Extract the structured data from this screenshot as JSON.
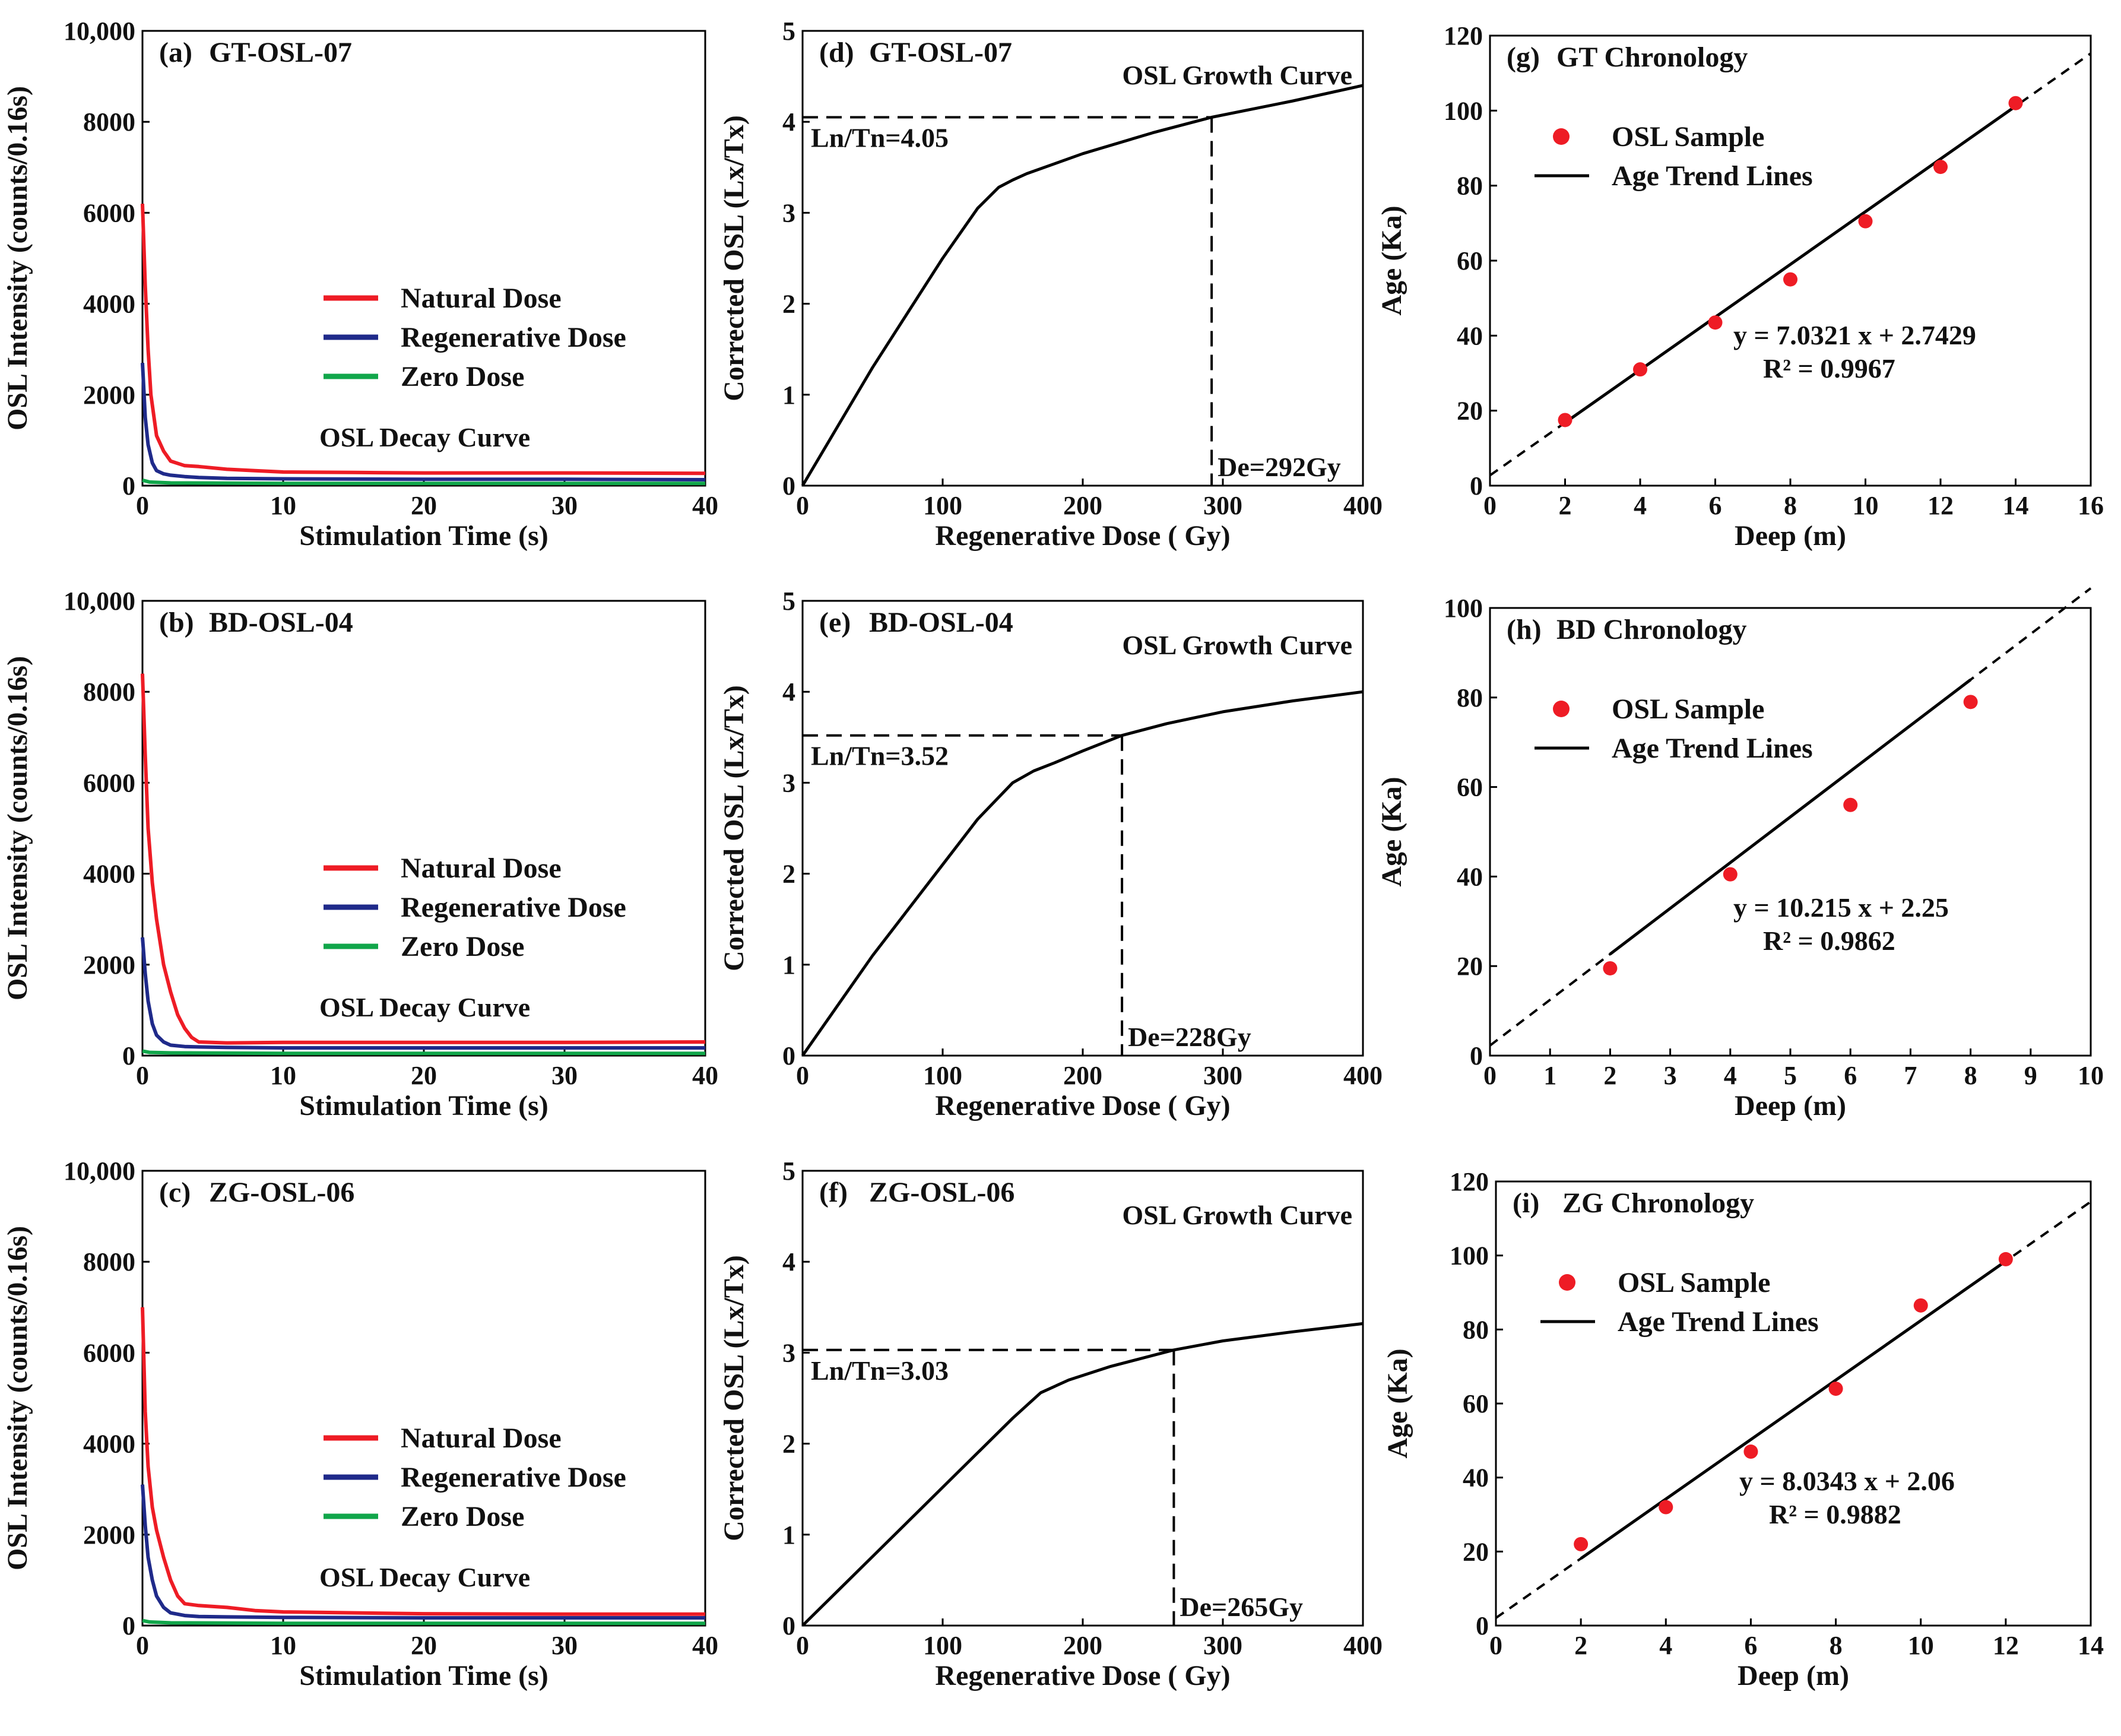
{
  "colors": {
    "natural": "#ee1c25",
    "regenerative": "#1f2a8a",
    "zero": "#10a64a",
    "marker": "#ee1c25",
    "line": "#000000"
  },
  "chart_data": [
    {
      "id": "a",
      "type": "line",
      "panel_label": "(a)",
      "sample": "GT-OSL-07",
      "title_note": "OSL Decay Curve",
      "xlabel": "Stimulation Time (s)",
      "ylabel": "OSL Intensity (counts/0.16s)",
      "xlim": [
        0,
        40
      ],
      "ylim": [
        0,
        10000
      ],
      "xticks": [
        0,
        10,
        20,
        30,
        40
      ],
      "xtick_labels": [
        "0",
        "10",
        "20",
        "30",
        "40"
      ],
      "yticks": [
        0,
        2000,
        4000,
        6000,
        8000,
        10000
      ],
      "ytick_labels": [
        "0",
        "2000",
        "4000",
        "6000",
        "8000",
        "10,000"
      ],
      "series": [
        {
          "name": "Natural Dose",
          "color_key": "natural",
          "x": [
            0,
            0.2,
            0.4,
            0.6,
            1,
            1.5,
            2,
            3,
            4,
            6,
            8,
            10,
            15,
            20,
            30,
            40
          ],
          "y": [
            6200,
            4400,
            3000,
            2000,
            1100,
            760,
            540,
            440,
            420,
            360,
            330,
            300,
            290,
            280,
            280,
            270
          ]
        },
        {
          "name": "Regenerative Dose",
          "color_key": "regenerative",
          "x": [
            0,
            0.2,
            0.4,
            0.7,
            1,
            1.5,
            2,
            3,
            4,
            6,
            10,
            20,
            30,
            40
          ],
          "y": [
            2700,
            1500,
            900,
            500,
            330,
            260,
            230,
            200,
            180,
            160,
            150,
            140,
            140,
            130
          ]
        },
        {
          "name": "Zero Dose",
          "color_key": "zero",
          "x": [
            0,
            0.5,
            2,
            10,
            20,
            30,
            40
          ],
          "y": [
            120,
            80,
            60,
            50,
            50,
            50,
            50
          ]
        }
      ]
    },
    {
      "id": "b",
      "type": "line",
      "panel_label": "(b)",
      "sample": "BD-OSL-04",
      "title_note": "OSL Decay Curve",
      "xlabel": "Stimulation Time (s)",
      "ylabel": "OSL Intensity (counts/0.16s)",
      "xlim": [
        0,
        40
      ],
      "ylim": [
        0,
        10000
      ],
      "xticks": [
        0,
        10,
        20,
        30,
        40
      ],
      "xtick_labels": [
        "0",
        "10",
        "20",
        "30",
        "40"
      ],
      "yticks": [
        0,
        2000,
        4000,
        6000,
        8000,
        10000
      ],
      "ytick_labels": [
        "0",
        "2000",
        "4000",
        "6000",
        "8000",
        "10,000"
      ],
      "series": [
        {
          "name": "Natural Dose",
          "color_key": "natural",
          "x": [
            0,
            0.2,
            0.4,
            0.7,
            1,
            1.5,
            2,
            2.5,
            3,
            3.5,
            4,
            6,
            10,
            20,
            30,
            40
          ],
          "y": [
            8400,
            6600,
            5000,
            3800,
            3000,
            2000,
            1400,
            900,
            600,
            400,
            300,
            280,
            290,
            290,
            290,
            300
          ]
        },
        {
          "name": "Regenerative Dose",
          "color_key": "regenerative",
          "x": [
            0,
            0.2,
            0.4,
            0.7,
            1,
            1.5,
            2,
            3,
            4,
            6,
            10,
            20,
            30,
            40
          ],
          "y": [
            2600,
            1800,
            1200,
            700,
            450,
            300,
            230,
            200,
            190,
            180,
            170,
            170,
            170,
            170
          ]
        },
        {
          "name": "Zero Dose",
          "color_key": "zero",
          "x": [
            0,
            0.5,
            2,
            10,
            20,
            30,
            40
          ],
          "y": [
            100,
            70,
            60,
            50,
            50,
            50,
            50
          ]
        }
      ]
    },
    {
      "id": "c",
      "type": "line",
      "panel_label": "(c)",
      "sample": "ZG-OSL-06",
      "title_note": "OSL Decay Curve",
      "xlabel": "Stimulation Time (s)",
      "ylabel": "OSL Intensity (counts/0.16s)",
      "xlim": [
        0,
        40
      ],
      "ylim": [
        0,
        10000
      ],
      "xticks": [
        0,
        10,
        20,
        30,
        40
      ],
      "xtick_labels": [
        "0",
        "10",
        "20",
        "30",
        "40"
      ],
      "yticks": [
        0,
        2000,
        4000,
        6000,
        8000,
        10000
      ],
      "ytick_labels": [
        "0",
        "2000",
        "4000",
        "6000",
        "8000",
        "10,000"
      ],
      "series": [
        {
          "name": "Natural Dose",
          "color_key": "natural",
          "x": [
            0,
            0.2,
            0.4,
            0.7,
            1,
            1.5,
            2,
            2.5,
            3,
            4,
            6,
            8,
            10,
            20,
            30,
            40
          ],
          "y": [
            7000,
            4700,
            3500,
            2600,
            2100,
            1500,
            1000,
            650,
            480,
            440,
            400,
            330,
            300,
            260,
            250,
            250
          ]
        },
        {
          "name": "Regenerative Dose",
          "color_key": "regenerative",
          "x": [
            0,
            0.2,
            0.4,
            0.7,
            1,
            1.5,
            2,
            3,
            4,
            6,
            10,
            20,
            30,
            40
          ],
          "y": [
            3100,
            2200,
            1500,
            1000,
            650,
            400,
            280,
            220,
            200,
            190,
            180,
            170,
            170,
            170
          ]
        },
        {
          "name": "Zero Dose",
          "color_key": "zero",
          "x": [
            0,
            0.5,
            2,
            10,
            20,
            30,
            40
          ],
          "y": [
            110,
            80,
            60,
            50,
            50,
            50,
            50
          ]
        }
      ]
    },
    {
      "id": "d",
      "type": "line",
      "panel_label": "(d)",
      "sample": "GT-OSL-07",
      "title_note": "OSL Growth Curve",
      "xlabel": "Regenerative Dose ( Gy)",
      "ylabel": "Corrected OSL (Lx/Tx)",
      "xlim": [
        0,
        400
      ],
      "ylim": [
        0,
        5
      ],
      "xticks": [
        0,
        100,
        200,
        300,
        400
      ],
      "xtick_labels": [
        "0",
        "100",
        "200",
        "300",
        "400"
      ],
      "yticks": [
        0,
        1,
        2,
        3,
        4,
        5
      ],
      "ytick_labels": [
        "0",
        "1",
        "2",
        "3",
        "4",
        "5"
      ],
      "series": [
        {
          "name": "Growth curve",
          "color_key": "line",
          "x": [
            0,
            25,
            50,
            75,
            100,
            125,
            140,
            150,
            160,
            180,
            200,
            250,
            292,
            350,
            400
          ],
          "y": [
            0,
            0.65,
            1.3,
            1.9,
            2.5,
            3.05,
            3.28,
            3.36,
            3.43,
            3.54,
            3.65,
            3.88,
            4.05,
            4.23,
            4.4
          ]
        }
      ],
      "ln_tn": 4.05,
      "ln_tn_label": "Ln/Tn=4.05",
      "de": 292,
      "de_label": "De=292Gy"
    },
    {
      "id": "e",
      "type": "line",
      "panel_label": "(e)",
      "sample": "BD-OSL-04",
      "title_note": "OSL Growth Curve",
      "xlabel": "Regenerative Dose ( Gy)",
      "ylabel": "Corrected OSL (Lx/Tx)",
      "xlim": [
        0,
        400
      ],
      "ylim": [
        0,
        5
      ],
      "xticks": [
        0,
        100,
        200,
        300,
        400
      ],
      "xtick_labels": [
        "0",
        "100",
        "200",
        "300",
        "400"
      ],
      "yticks": [
        0,
        1,
        2,
        3,
        4,
        5
      ],
      "ytick_labels": [
        "0",
        "1",
        "2",
        "3",
        "4",
        "5"
      ],
      "series": [
        {
          "name": "Growth curve",
          "color_key": "line",
          "x": [
            0,
            25,
            50,
            75,
            100,
            125,
            150,
            165,
            180,
            200,
            228,
            260,
            300,
            350,
            400
          ],
          "y": [
            0,
            0.55,
            1.1,
            1.6,
            2.1,
            2.6,
            3.0,
            3.13,
            3.22,
            3.35,
            3.52,
            3.65,
            3.78,
            3.9,
            4.0
          ]
        }
      ],
      "ln_tn": 3.52,
      "ln_tn_label": "Ln/Tn=3.52",
      "de": 228,
      "de_label": "De=228Gy"
    },
    {
      "id": "f",
      "type": "line",
      "panel_label": "(f)",
      "sample": "ZG-OSL-06",
      "title_note": "OSL Growth Curve",
      "xlabel": "Regenerative Dose ( Gy)",
      "ylabel": "Corrected OSL (Lx/Tx)",
      "xlim": [
        0,
        400
      ],
      "ylim": [
        0,
        5
      ],
      "xticks": [
        0,
        100,
        200,
        300,
        400
      ],
      "xtick_labels": [
        "0",
        "100",
        "200",
        "300",
        "400"
      ],
      "yticks": [
        0,
        1,
        2,
        3,
        4,
        5
      ],
      "ytick_labels": [
        "0",
        "1",
        "2",
        "3",
        "4",
        "5"
      ],
      "series": [
        {
          "name": "Growth curve",
          "color_key": "line",
          "x": [
            0,
            25,
            50,
            75,
            100,
            125,
            150,
            170,
            190,
            220,
            265,
            300,
            350,
            400
          ],
          "y": [
            0,
            0.38,
            0.76,
            1.14,
            1.52,
            1.9,
            2.28,
            2.56,
            2.7,
            2.85,
            3.03,
            3.13,
            3.23,
            3.32
          ]
        }
      ],
      "ln_tn": 3.03,
      "ln_tn_label": "Ln/Tn=3.03",
      "de": 265,
      "de_label": "De=265Gy"
    },
    {
      "id": "g",
      "type": "scatter",
      "panel_label": "(g)",
      "sample": "GT Chronology",
      "xlabel": "Deep (m)",
      "ylabel": "Age (Ka)",
      "xlim": [
        0,
        16
      ],
      "ylim": [
        0,
        120
      ],
      "xticks": [
        0,
        2,
        4,
        6,
        8,
        10,
        12,
        14,
        16
      ],
      "xtick_labels": [
        "0",
        "2",
        "4",
        "6",
        "8",
        "10",
        "12",
        "14",
        "16"
      ],
      "yticks": [
        0,
        20,
        40,
        60,
        80,
        100,
        120
      ],
      "ytick_labels": [
        "0",
        "20",
        "40",
        "60",
        "80",
        "100",
        "120"
      ],
      "points": {
        "x": [
          2,
          4,
          6,
          8,
          10,
          12,
          14
        ],
        "y": [
          17.5,
          31,
          43.5,
          55,
          70.5,
          85,
          102
        ]
      },
      "fit": {
        "slope": 7.0321,
        "intercept": 2.7429,
        "solid_range": [
          2,
          14
        ],
        "dash_range": [
          0,
          16
        ]
      },
      "equation": "y = 7.0321 x + 2.7429",
      "r2": "R² = 0.9967",
      "legend": [
        "OSL Sample",
        "Age Trend Lines"
      ]
    },
    {
      "id": "h",
      "type": "scatter",
      "panel_label": "(h)",
      "sample": "BD Chronology",
      "xlabel": "Deep (m)",
      "ylabel": "Age (Ka)",
      "xlim": [
        0,
        10
      ],
      "ylim": [
        0,
        100
      ],
      "xticks": [
        0,
        1,
        2,
        3,
        4,
        5,
        6,
        7,
        8,
        9,
        10
      ],
      "xtick_labels": [
        "0",
        "1",
        "2",
        "3",
        "4",
        "5",
        "6",
        "7",
        "8",
        "9",
        "10"
      ],
      "yticks": [
        0,
        20,
        40,
        60,
        80,
        100
      ],
      "ytick_labels": [
        "0",
        "20",
        "40",
        "60",
        "80",
        "100"
      ],
      "points": {
        "x": [
          2,
          4,
          6,
          8
        ],
        "y": [
          19.5,
          40.5,
          56,
          79
        ]
      },
      "fit": {
        "slope": 10.215,
        "intercept": 2.25,
        "solid_range": [
          2,
          8
        ],
        "dash_range": [
          0,
          10
        ]
      },
      "equation": "y = 10.215 x + 2.25",
      "r2": "R² = 0.9862",
      "legend": [
        "OSL Sample",
        "Age Trend Lines"
      ]
    },
    {
      "id": "i",
      "type": "scatter",
      "panel_label": "(i)",
      "sample": "ZG Chronology",
      "xlabel": "Deep (m)",
      "ylabel": "Age (Ka)",
      "xlim": [
        0,
        14
      ],
      "ylim": [
        0,
        120
      ],
      "xticks": [
        0,
        2,
        4,
        6,
        8,
        10,
        12,
        14
      ],
      "xtick_labels": [
        "0",
        "2",
        "4",
        "6",
        "8",
        "10",
        "12",
        "14"
      ],
      "yticks": [
        0,
        20,
        40,
        60,
        80,
        100,
        120
      ],
      "ytick_labels": [
        "0",
        "20",
        "40",
        "60",
        "80",
        "100",
        "120"
      ],
      "points": {
        "x": [
          2,
          4,
          6,
          8,
          10,
          12
        ],
        "y": [
          22,
          32,
          47,
          64,
          86.5,
          99
        ]
      },
      "fit": {
        "slope": 8.0343,
        "intercept": 2.06,
        "solid_range": [
          2,
          12
        ],
        "dash_range": [
          0,
          14
        ]
      },
      "equation": "y = 8.0343 x + 2.06",
      "r2": "R² = 0.9882",
      "legend": [
        "OSL Sample",
        "Age Trend Lines"
      ]
    }
  ]
}
